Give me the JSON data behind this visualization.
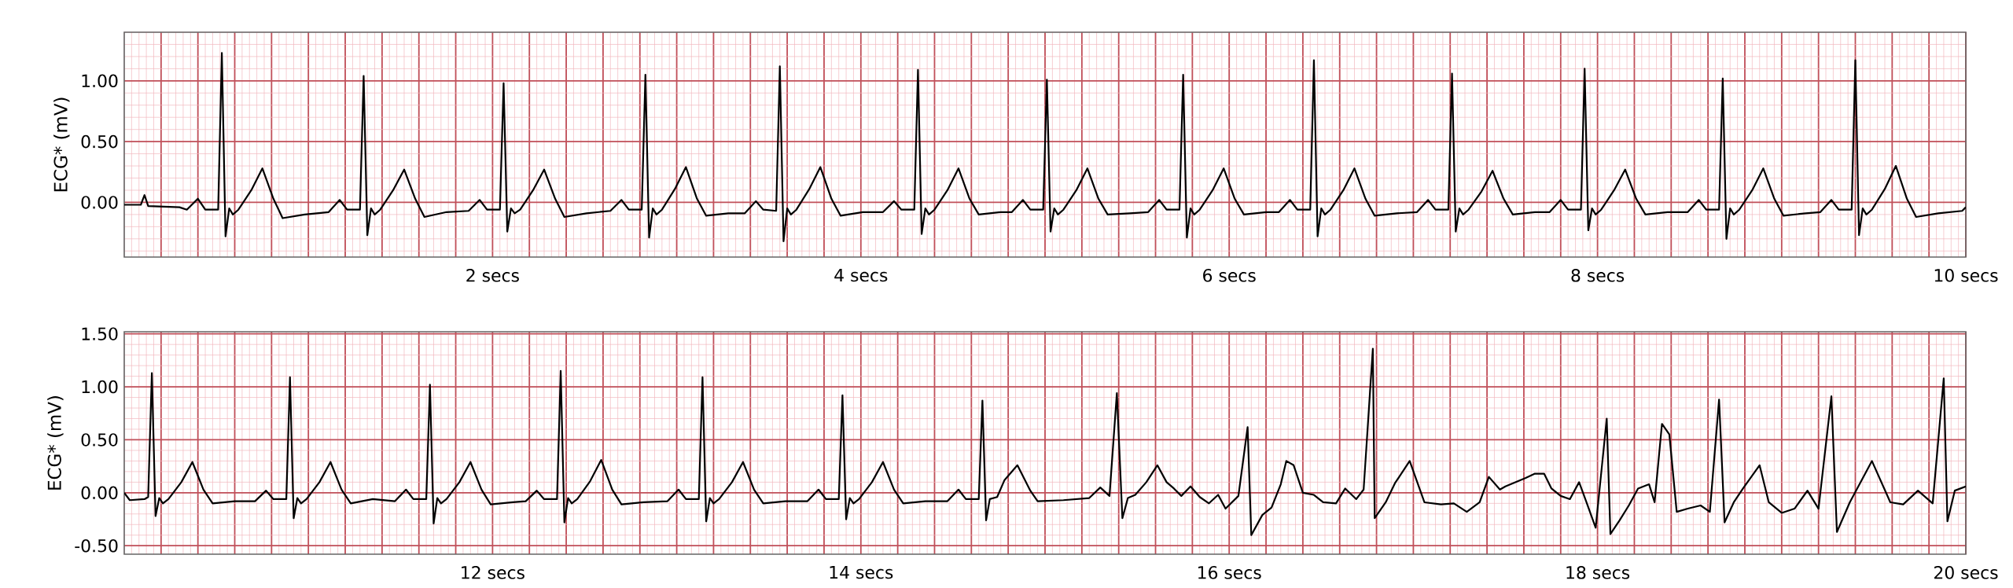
{
  "chart_data": [
    {
      "type": "line",
      "ylabel": "ECG* (mV)",
      "color": "#000000",
      "grid": true,
      "xlim": [
        0,
        10
      ],
      "ylim": [
        -0.45,
        1.4
      ],
      "yticks": [
        {
          "value": 0,
          "label": "0.00"
        },
        {
          "value": 0.5,
          "label": "0.50"
        },
        {
          "value": 1,
          "label": "1.00"
        }
      ],
      "xticks": [
        {
          "value": 0.2,
          "label": null
        },
        {
          "value": 0.4,
          "label": null
        },
        {
          "value": 0.6,
          "label": null
        },
        {
          "value": 0.8,
          "label": null
        },
        {
          "value": 1,
          "label": null
        },
        {
          "value": 1.2,
          "label": null
        },
        {
          "value": 1.4,
          "label": null
        },
        {
          "value": 1.6,
          "label": null
        },
        {
          "value": 1.8,
          "label": null
        },
        {
          "value": 2,
          "label": "2 secs"
        },
        {
          "value": 2.2,
          "label": null
        },
        {
          "value": 2.4,
          "label": null
        },
        {
          "value": 2.6,
          "label": null
        },
        {
          "value": 2.8,
          "label": null
        },
        {
          "value": 3,
          "label": null
        },
        {
          "value": 3.2,
          "label": null
        },
        {
          "value": 3.4,
          "label": null
        },
        {
          "value": 3.6,
          "label": null
        },
        {
          "value": 3.8,
          "label": null
        },
        {
          "value": 4,
          "label": "4 secs"
        },
        {
          "value": 4.2,
          "label": null
        },
        {
          "value": 4.4,
          "label": null
        },
        {
          "value": 4.6,
          "label": null
        },
        {
          "value": 4.8,
          "label": null
        },
        {
          "value": 5,
          "label": null
        },
        {
          "value": 5.2,
          "label": null
        },
        {
          "value": 5.4,
          "label": null
        },
        {
          "value": 5.6,
          "label": null
        },
        {
          "value": 5.8,
          "label": null
        },
        {
          "value": 6,
          "label": "6 secs"
        },
        {
          "value": 6.2,
          "label": null
        },
        {
          "value": 6.4,
          "label": null
        },
        {
          "value": 6.6,
          "label": null
        },
        {
          "value": 6.8,
          "label": null
        },
        {
          "value": 7,
          "label": null
        },
        {
          "value": 7.2,
          "label": null
        },
        {
          "value": 7.4,
          "label": null
        },
        {
          "value": 7.6,
          "label": null
        },
        {
          "value": 7.8,
          "label": null
        },
        {
          "value": 8,
          "label": "8 secs"
        },
        {
          "value": 8.2,
          "label": null
        },
        {
          "value": 8.4,
          "label": null
        },
        {
          "value": 8.6,
          "label": null
        },
        {
          "value": 8.8,
          "label": null
        },
        {
          "value": 9,
          "label": null
        },
        {
          "value": 9.2,
          "label": null
        },
        {
          "value": 9.4,
          "label": null
        },
        {
          "value": 9.6,
          "label": null
        },
        {
          "value": 9.8,
          "label": null
        },
        {
          "value": 10,
          "label": "10 secs"
        }
      ],
      "x": [
        0.0,
        0.09,
        0.11,
        0.13,
        0.3,
        0.34,
        0.4,
        0.44,
        0.51,
        0.53,
        0.55,
        0.57,
        0.59,
        0.62,
        0.69,
        0.75,
        0.81,
        0.86,
        0.98,
        1.11,
        1.17,
        1.21,
        1.28,
        1.3,
        1.32,
        1.34,
        1.36,
        1.39,
        1.46,
        1.52,
        1.58,
        1.63,
        1.75,
        1.87,
        1.93,
        1.97,
        2.04,
        2.06,
        2.08,
        2.1,
        2.12,
        2.15,
        2.22,
        2.28,
        2.34,
        2.39,
        2.51,
        2.64,
        2.7,
        2.74,
        2.81,
        2.83,
        2.85,
        2.87,
        2.89,
        2.92,
        2.99,
        3.05,
        3.11,
        3.16,
        3.28,
        3.37,
        3.43,
        3.47,
        3.54,
        3.56,
        3.58,
        3.6,
        3.62,
        3.65,
        3.72,
        3.78,
        3.84,
        3.89,
        4.01,
        4.12,
        4.18,
        4.22,
        4.29,
        4.31,
        4.33,
        4.35,
        4.37,
        4.4,
        4.47,
        4.53,
        4.59,
        4.64,
        4.76,
        4.82,
        4.88,
        4.92,
        4.99,
        5.01,
        5.03,
        5.05,
        5.07,
        5.1,
        5.17,
        5.23,
        5.29,
        5.34,
        5.46,
        5.56,
        5.62,
        5.66,
        5.73,
        5.75,
        5.77,
        5.79,
        5.81,
        5.84,
        5.91,
        5.97,
        6.03,
        6.08,
        6.2,
        6.27,
        6.33,
        6.37,
        6.44,
        6.46,
        6.48,
        6.5,
        6.52,
        6.55,
        6.62,
        6.68,
        6.74,
        6.79,
        6.91,
        7.02,
        7.08,
        7.12,
        7.19,
        7.21,
        7.23,
        7.25,
        7.27,
        7.3,
        7.37,
        7.43,
        7.49,
        7.54,
        7.66,
        7.74,
        7.8,
        7.84,
        7.91,
        7.93,
        7.95,
        7.97,
        7.99,
        8.02,
        8.09,
        8.15,
        8.21,
        8.26,
        8.38,
        8.49,
        8.55,
        8.59,
        8.66,
        8.68,
        8.7,
        8.72,
        8.74,
        8.77,
        8.84,
        8.9,
        8.96,
        9.01,
        9.13,
        9.21,
        9.27,
        9.31,
        9.38,
        9.4,
        9.42,
        9.44,
        9.46,
        9.49,
        9.56,
        9.62,
        9.68,
        9.73,
        9.85,
        9.98,
        10.0
      ],
      "values": [
        -0.02,
        -0.02,
        0.06,
        -0.03,
        -0.04,
        -0.06,
        0.03,
        -0.06,
        -0.06,
        1.23,
        -0.28,
        -0.05,
        -0.1,
        -0.06,
        0.1,
        0.28,
        0.03,
        -0.13,
        -0.1,
        -0.08,
        0.02,
        -0.06,
        -0.06,
        1.04,
        -0.27,
        -0.05,
        -0.1,
        -0.06,
        0.1,
        0.27,
        0.03,
        -0.12,
        -0.08,
        -0.07,
        0.02,
        -0.06,
        -0.06,
        0.98,
        -0.24,
        -0.05,
        -0.09,
        -0.06,
        0.1,
        0.27,
        0.03,
        -0.12,
        -0.09,
        -0.07,
        0.02,
        -0.06,
        -0.06,
        1.05,
        -0.29,
        -0.05,
        -0.1,
        -0.06,
        0.11,
        0.29,
        0.03,
        -0.11,
        -0.09,
        -0.09,
        0.01,
        -0.06,
        -0.07,
        1.12,
        -0.32,
        -0.05,
        -0.1,
        -0.06,
        0.11,
        0.29,
        0.03,
        -0.11,
        -0.08,
        -0.08,
        0.01,
        -0.06,
        -0.06,
        1.09,
        -0.26,
        -0.05,
        -0.1,
        -0.06,
        0.1,
        0.28,
        0.03,
        -0.1,
        -0.08,
        -0.08,
        0.02,
        -0.06,
        -0.06,
        1.01,
        -0.24,
        -0.05,
        -0.1,
        -0.06,
        0.1,
        0.28,
        0.03,
        -0.1,
        -0.09,
        -0.08,
        0.02,
        -0.06,
        -0.06,
        1.05,
        -0.29,
        -0.05,
        -0.1,
        -0.06,
        0.1,
        0.28,
        0.03,
        -0.1,
        -0.08,
        -0.08,
        0.02,
        -0.06,
        -0.06,
        1.17,
        -0.28,
        -0.05,
        -0.1,
        -0.06,
        0.1,
        0.28,
        0.03,
        -0.11,
        -0.09,
        -0.08,
        0.02,
        -0.06,
        -0.06,
        1.06,
        -0.24,
        -0.05,
        -0.1,
        -0.06,
        0.09,
        0.26,
        0.03,
        -0.1,
        -0.08,
        -0.08,
        0.02,
        -0.06,
        -0.06,
        1.1,
        -0.23,
        -0.05,
        -0.1,
        -0.06,
        0.1,
        0.27,
        0.03,
        -0.1,
        -0.08,
        -0.08,
        0.02,
        -0.06,
        -0.06,
        1.02,
        -0.3,
        -0.05,
        -0.1,
        -0.06,
        0.1,
        0.28,
        0.03,
        -0.11,
        -0.09,
        -0.08,
        0.02,
        -0.06,
        -0.06,
        1.17,
        -0.27,
        -0.05,
        -0.1,
        -0.06,
        0.11,
        0.3,
        0.03,
        -0.12,
        -0.09,
        -0.07,
        -0.04
      ]
    },
    {
      "type": "line",
      "ylabel": "ECG* (mV)",
      "color": "#000000",
      "grid": true,
      "xlim": [
        10,
        20
      ],
      "ylim": [
        -0.58,
        1.52
      ],
      "yticks": [
        {
          "value": -0.5,
          "label": "-0.50"
        },
        {
          "value": 0,
          "label": "0.00"
        },
        {
          "value": 0.5,
          "label": "0.50"
        },
        {
          "value": 1,
          "label": "1.00"
        },
        {
          "value": 1.5,
          "label": "1.50"
        }
      ],
      "xticks": [
        {
          "value": 10.2,
          "label": null
        },
        {
          "value": 10.4,
          "label": null
        },
        {
          "value": 10.6,
          "label": null
        },
        {
          "value": 10.8,
          "label": null
        },
        {
          "value": 11,
          "label": null
        },
        {
          "value": 11.2,
          "label": null
        },
        {
          "value": 11.4,
          "label": null
        },
        {
          "value": 11.6,
          "label": null
        },
        {
          "value": 11.8,
          "label": null
        },
        {
          "value": 12,
          "label": "12 secs"
        },
        {
          "value": 12.2,
          "label": null
        },
        {
          "value": 12.4,
          "label": null
        },
        {
          "value": 12.6,
          "label": null
        },
        {
          "value": 12.8,
          "label": null
        },
        {
          "value": 13,
          "label": null
        },
        {
          "value": 13.2,
          "label": null
        },
        {
          "value": 13.4,
          "label": null
        },
        {
          "value": 13.6,
          "label": null
        },
        {
          "value": 13.8,
          "label": null
        },
        {
          "value": 14,
          "label": "14 secs"
        },
        {
          "value": 14.2,
          "label": null
        },
        {
          "value": 14.4,
          "label": null
        },
        {
          "value": 14.6,
          "label": null
        },
        {
          "value": 14.8,
          "label": null
        },
        {
          "value": 15,
          "label": null
        },
        {
          "value": 15.2,
          "label": null
        },
        {
          "value": 15.4,
          "label": null
        },
        {
          "value": 15.6,
          "label": null
        },
        {
          "value": 15.8,
          "label": null
        },
        {
          "value": 16,
          "label": "16 secs"
        },
        {
          "value": 16.2,
          "label": null
        },
        {
          "value": 16.4,
          "label": null
        },
        {
          "value": 16.6,
          "label": null
        },
        {
          "value": 16.8,
          "label": null
        },
        {
          "value": 17,
          "label": null
        },
        {
          "value": 17.2,
          "label": null
        },
        {
          "value": 17.4,
          "label": null
        },
        {
          "value": 17.6,
          "label": null
        },
        {
          "value": 17.8,
          "label": null
        },
        {
          "value": 18,
          "label": "18 secs"
        },
        {
          "value": 18.2,
          "label": null
        },
        {
          "value": 18.4,
          "label": null
        },
        {
          "value": 18.6,
          "label": null
        },
        {
          "value": 18.8,
          "label": null
        },
        {
          "value": 19,
          "label": null
        },
        {
          "value": 19.2,
          "label": null
        },
        {
          "value": 19.4,
          "label": null
        },
        {
          "value": 19.6,
          "label": null
        },
        {
          "value": 19.8,
          "label": null
        },
        {
          "value": 20,
          "label": "20 secs"
        }
      ],
      "x": [
        10.0,
        10.03,
        10.11,
        10.13,
        10.15,
        10.17,
        10.19,
        10.21,
        10.24,
        10.31,
        10.37,
        10.43,
        10.48,
        10.6,
        10.71,
        10.77,
        10.81,
        10.88,
        10.9,
        10.92,
        10.94,
        10.96,
        10.99,
        11.06,
        11.12,
        11.18,
        11.23,
        11.35,
        11.47,
        11.53,
        11.57,
        11.64,
        11.66,
        11.68,
        11.7,
        11.72,
        11.75,
        11.82,
        11.88,
        11.94,
        11.99,
        12.11,
        12.18,
        12.24,
        12.28,
        12.35,
        12.37,
        12.39,
        12.41,
        12.43,
        12.46,
        12.53,
        12.59,
        12.65,
        12.7,
        12.82,
        12.95,
        13.01,
        13.05,
        13.12,
        13.14,
        13.16,
        13.18,
        13.2,
        13.23,
        13.3,
        13.36,
        13.42,
        13.47,
        13.59,
        13.71,
        13.77,
        13.81,
        13.88,
        13.9,
        13.92,
        13.94,
        13.96,
        13.99,
        14.06,
        14.12,
        14.18,
        14.23,
        14.35,
        14.47,
        14.53,
        14.57,
        14.64,
        14.66,
        14.68,
        14.7,
        14.74,
        14.78,
        14.85,
        14.92,
        14.96,
        15.1,
        15.24,
        15.3,
        15.35,
        15.39,
        15.42,
        15.45,
        15.49,
        15.55,
        15.61,
        15.66,
        15.7,
        15.74,
        15.79,
        15.84,
        15.89,
        15.94,
        15.98,
        16.05,
        16.1,
        16.12,
        16.18,
        16.23,
        16.28,
        16.31,
        16.35,
        16.4,
        16.46,
        16.51,
        16.58,
        16.63,
        16.69,
        16.73,
        16.78,
        16.79,
        16.85,
        16.9,
        16.98,
        17.06,
        17.15,
        17.22,
        17.29,
        17.36,
        17.41,
        17.47,
        17.5,
        17.61,
        17.66,
        17.71,
        17.75,
        17.8,
        17.85,
        17.9,
        17.94,
        17.99,
        18.05,
        18.07,
        18.12,
        18.17,
        18.22,
        18.28,
        18.31,
        18.35,
        18.39,
        18.43,
        18.49,
        18.56,
        18.61,
        18.66,
        18.69,
        18.74,
        18.79,
        18.88,
        18.93,
        19.0,
        19.07,
        19.14,
        19.2,
        19.27,
        19.3,
        19.37,
        19.49,
        19.59,
        19.66,
        19.74,
        19.82,
        19.88,
        19.9,
        19.94,
        20.0
      ],
      "values": [
        0.0,
        -0.07,
        -0.06,
        -0.04,
        1.13,
        -0.22,
        -0.05,
        -0.1,
        -0.06,
        0.1,
        0.29,
        0.03,
        -0.1,
        -0.08,
        -0.08,
        0.02,
        -0.06,
        -0.06,
        1.09,
        -0.24,
        -0.05,
        -0.1,
        -0.06,
        0.1,
        0.29,
        0.03,
        -0.1,
        -0.06,
        -0.08,
        0.03,
        -0.06,
        -0.06,
        1.02,
        -0.29,
        -0.05,
        -0.1,
        -0.06,
        0.1,
        0.29,
        0.03,
        -0.11,
        -0.09,
        -0.08,
        0.02,
        -0.06,
        -0.06,
        1.15,
        -0.28,
        -0.05,
        -0.1,
        -0.06,
        0.11,
        0.31,
        0.03,
        -0.11,
        -0.09,
        -0.08,
        0.03,
        -0.06,
        -0.06,
        1.09,
        -0.27,
        -0.05,
        -0.1,
        -0.06,
        0.1,
        0.29,
        0.03,
        -0.1,
        -0.08,
        -0.08,
        0.03,
        -0.06,
        -0.06,
        0.92,
        -0.25,
        -0.05,
        -0.1,
        -0.06,
        0.1,
        0.29,
        0.03,
        -0.1,
        -0.08,
        -0.08,
        0.03,
        -0.06,
        -0.06,
        0.87,
        -0.26,
        -0.06,
        -0.04,
        0.12,
        0.26,
        0.02,
        -0.08,
        -0.07,
        -0.05,
        0.05,
        -0.03,
        0.94,
        -0.24,
        -0.05,
        -0.02,
        0.1,
        0.26,
        0.1,
        0.04,
        -0.03,
        0.06,
        -0.04,
        -0.1,
        -0.02,
        -0.15,
        -0.03,
        0.62,
        -0.4,
        -0.21,
        -0.14,
        0.08,
        0.3,
        0.26,
        0.0,
        -0.02,
        -0.09,
        -0.1,
        0.04,
        -0.06,
        0.03,
        1.36,
        -0.24,
        -0.09,
        0.09,
        0.3,
        -0.09,
        -0.11,
        -0.1,
        -0.18,
        -0.09,
        0.15,
        0.03,
        0.06,
        0.14,
        0.18,
        0.18,
        0.04,
        -0.03,
        -0.06,
        0.1,
        -0.09,
        -0.33,
        0.7,
        -0.39,
        -0.26,
        -0.12,
        0.04,
        0.08,
        -0.09,
        0.65,
        0.55,
        -0.18,
        -0.15,
        -0.12,
        -0.18,
        0.88,
        -0.28,
        -0.09,
        0.04,
        0.26,
        -0.09,
        -0.19,
        -0.15,
        0.02,
        -0.15,
        0.91,
        -0.37,
        -0.09,
        0.3,
        -0.09,
        -0.11,
        0.02,
        -0.1,
        1.08,
        -0.27,
        0.02,
        0.06
      ]
    }
  ]
}
